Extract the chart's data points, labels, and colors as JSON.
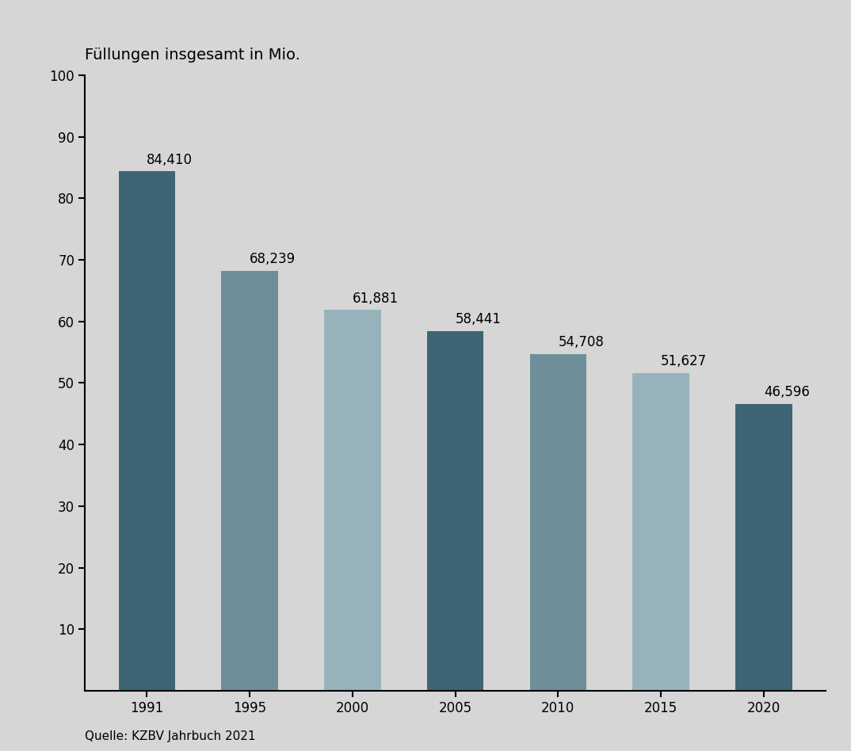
{
  "categories": [
    "1991",
    "1995",
    "2000",
    "2005",
    "2010",
    "2015",
    "2020"
  ],
  "values": [
    84.41,
    68.239,
    61.881,
    58.441,
    54.708,
    51.627,
    46.596
  ],
  "labels": [
    "84,410",
    "68,239",
    "61,881",
    "58,441",
    "54,708",
    "51,627",
    "46,596"
  ],
  "bar_colors": [
    "#3e6573",
    "#6e8f9a",
    "#96b3bc",
    "#3e6573",
    "#6e8f9a",
    "#96b3bc",
    "#3e6573"
  ],
  "background_color": "#d6d6d6",
  "plot_bg_color": "#d6d6d6",
  "title": "Füllungen insgesamt in Mio.",
  "ylim": [
    0,
    100
  ],
  "yticks": [
    10,
    20,
    30,
    40,
    50,
    60,
    70,
    80,
    90,
    100
  ],
  "source": "Quelle: KZBV Jahrbuch 2021",
  "title_fontsize": 14,
  "label_fontsize": 12,
  "tick_fontsize": 12,
  "source_fontsize": 11,
  "bar_width": 0.55
}
